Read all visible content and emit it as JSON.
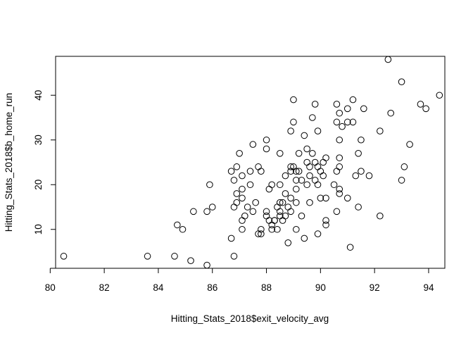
{
  "chart_data": {
    "type": "scatter",
    "title": "",
    "xlabel": "Hitting_Stats_2018$exit_velocity_avg",
    "ylabel": "Hitting_Stats_2018$b_home_run",
    "xlim": [
      80.2,
      94.6
    ],
    "ylim": [
      1.3,
      48.7
    ],
    "xticks": [
      80,
      82,
      84,
      86,
      88,
      90,
      92,
      94
    ],
    "yticks": [
      10,
      20,
      30,
      40
    ],
    "grid": false,
    "marker": "open-circle",
    "points": [
      {
        "x": 80.5,
        "y": 4
      },
      {
        "x": 83.6,
        "y": 4
      },
      {
        "x": 84.6,
        "y": 4
      },
      {
        "x": 84.7,
        "y": 11
      },
      {
        "x": 84.9,
        "y": 10
      },
      {
        "x": 85.2,
        "y": 3
      },
      {
        "x": 85.3,
        "y": 14
      },
      {
        "x": 85.8,
        "y": 2
      },
      {
        "x": 85.8,
        "y": 14
      },
      {
        "x": 85.9,
        "y": 20
      },
      {
        "x": 86.0,
        "y": 15
      },
      {
        "x": 86.7,
        "y": 8
      },
      {
        "x": 86.7,
        "y": 23
      },
      {
        "x": 86.8,
        "y": 4
      },
      {
        "x": 86.8,
        "y": 15
      },
      {
        "x": 86.8,
        "y": 21
      },
      {
        "x": 86.9,
        "y": 24
      },
      {
        "x": 86.9,
        "y": 16
      },
      {
        "x": 86.9,
        "y": 18
      },
      {
        "x": 87.0,
        "y": 27
      },
      {
        "x": 87.1,
        "y": 22
      },
      {
        "x": 87.1,
        "y": 19
      },
      {
        "x": 87.1,
        "y": 17
      },
      {
        "x": 87.1,
        "y": 10
      },
      {
        "x": 87.1,
        "y": 12
      },
      {
        "x": 87.2,
        "y": 13
      },
      {
        "x": 87.3,
        "y": 15
      },
      {
        "x": 87.4,
        "y": 23
      },
      {
        "x": 87.4,
        "y": 20
      },
      {
        "x": 87.5,
        "y": 29
      },
      {
        "x": 87.5,
        "y": 14
      },
      {
        "x": 87.6,
        "y": 16
      },
      {
        "x": 87.7,
        "y": 24
      },
      {
        "x": 87.7,
        "y": 9
      },
      {
        "x": 87.8,
        "y": 23
      },
      {
        "x": 87.8,
        "y": 10
      },
      {
        "x": 87.8,
        "y": 9
      },
      {
        "x": 88.0,
        "y": 30
      },
      {
        "x": 88.0,
        "y": 28
      },
      {
        "x": 88.0,
        "y": 14
      },
      {
        "x": 88.0,
        "y": 13
      },
      {
        "x": 88.1,
        "y": 19
      },
      {
        "x": 88.1,
        "y": 12
      },
      {
        "x": 88.2,
        "y": 20
      },
      {
        "x": 88.2,
        "y": 11
      },
      {
        "x": 88.2,
        "y": 10
      },
      {
        "x": 88.3,
        "y": 12
      },
      {
        "x": 88.3,
        "y": 12
      },
      {
        "x": 88.4,
        "y": 10
      },
      {
        "x": 88.4,
        "y": 15
      },
      {
        "x": 88.5,
        "y": 27
      },
      {
        "x": 88.5,
        "y": 20
      },
      {
        "x": 88.5,
        "y": 16
      },
      {
        "x": 88.5,
        "y": 14
      },
      {
        "x": 88.5,
        "y": 13
      },
      {
        "x": 88.6,
        "y": 16
      },
      {
        "x": 88.6,
        "y": 12
      },
      {
        "x": 88.7,
        "y": 22
      },
      {
        "x": 88.7,
        "y": 18
      },
      {
        "x": 88.7,
        "y": 13
      },
      {
        "x": 88.8,
        "y": 7
      },
      {
        "x": 88.8,
        "y": 15
      },
      {
        "x": 88.9,
        "y": 32
      },
      {
        "x": 88.9,
        "y": 24
      },
      {
        "x": 88.9,
        "y": 23
      },
      {
        "x": 88.9,
        "y": 17
      },
      {
        "x": 88.9,
        "y": 14
      },
      {
        "x": 89.0,
        "y": 39
      },
      {
        "x": 89.0,
        "y": 34
      },
      {
        "x": 89.0,
        "y": 24
      },
      {
        "x": 89.1,
        "y": 23
      },
      {
        "x": 89.1,
        "y": 21
      },
      {
        "x": 89.1,
        "y": 19
      },
      {
        "x": 89.1,
        "y": 16
      },
      {
        "x": 89.1,
        "y": 10
      },
      {
        "x": 89.2,
        "y": 27
      },
      {
        "x": 89.2,
        "y": 23
      },
      {
        "x": 89.3,
        "y": 21
      },
      {
        "x": 89.3,
        "y": 13
      },
      {
        "x": 89.4,
        "y": 31
      },
      {
        "x": 89.4,
        "y": 8
      },
      {
        "x": 89.5,
        "y": 28
      },
      {
        "x": 89.5,
        "y": 25
      },
      {
        "x": 89.5,
        "y": 20
      },
      {
        "x": 89.6,
        "y": 24
      },
      {
        "x": 89.6,
        "y": 22
      },
      {
        "x": 89.6,
        "y": 16
      },
      {
        "x": 89.7,
        "y": 35
      },
      {
        "x": 89.7,
        "y": 27
      },
      {
        "x": 89.8,
        "y": 38
      },
      {
        "x": 89.8,
        "y": 25
      },
      {
        "x": 89.8,
        "y": 21
      },
      {
        "x": 89.9,
        "y": 32
      },
      {
        "x": 89.9,
        "y": 24
      },
      {
        "x": 89.9,
        "y": 20
      },
      {
        "x": 89.9,
        "y": 9
      },
      {
        "x": 90.0,
        "y": 23
      },
      {
        "x": 90.0,
        "y": 17
      },
      {
        "x": 90.1,
        "y": 25
      },
      {
        "x": 90.1,
        "y": 22
      },
      {
        "x": 90.2,
        "y": 26
      },
      {
        "x": 90.2,
        "y": 17
      },
      {
        "x": 90.2,
        "y": 12
      },
      {
        "x": 90.2,
        "y": 11
      },
      {
        "x": 90.5,
        "y": 20
      },
      {
        "x": 90.6,
        "y": 38
      },
      {
        "x": 90.6,
        "y": 34
      },
      {
        "x": 90.6,
        "y": 23
      },
      {
        "x": 90.6,
        "y": 14
      },
      {
        "x": 90.7,
        "y": 36
      },
      {
        "x": 90.7,
        "y": 30
      },
      {
        "x": 90.7,
        "y": 26
      },
      {
        "x": 90.7,
        "y": 24
      },
      {
        "x": 90.7,
        "y": 19
      },
      {
        "x": 90.7,
        "y": 18
      },
      {
        "x": 90.8,
        "y": 33
      },
      {
        "x": 91.0,
        "y": 37
      },
      {
        "x": 91.0,
        "y": 34
      },
      {
        "x": 91.0,
        "y": 17
      },
      {
        "x": 91.1,
        "y": 6
      },
      {
        "x": 91.2,
        "y": 39
      },
      {
        "x": 91.2,
        "y": 34
      },
      {
        "x": 91.3,
        "y": 22
      },
      {
        "x": 91.4,
        "y": 27
      },
      {
        "x": 91.4,
        "y": 15
      },
      {
        "x": 91.5,
        "y": 30
      },
      {
        "x": 91.5,
        "y": 23
      },
      {
        "x": 91.6,
        "y": 37
      },
      {
        "x": 91.8,
        "y": 22
      },
      {
        "x": 92.2,
        "y": 32
      },
      {
        "x": 92.2,
        "y": 13
      },
      {
        "x": 92.5,
        "y": 48
      },
      {
        "x": 92.6,
        "y": 36
      },
      {
        "x": 93.0,
        "y": 43
      },
      {
        "x": 93.0,
        "y": 21
      },
      {
        "x": 93.1,
        "y": 24
      },
      {
        "x": 93.3,
        "y": 29
      },
      {
        "x": 93.7,
        "y": 38
      },
      {
        "x": 93.9,
        "y": 37
      },
      {
        "x": 94.4,
        "y": 40
      }
    ]
  }
}
